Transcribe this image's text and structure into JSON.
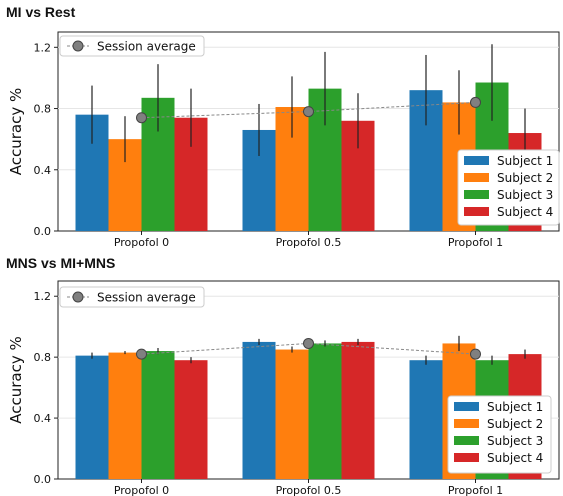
{
  "chart_data": [
    {
      "type": "bar",
      "title": "MI vs Rest",
      "ylabel": "Accuracy %",
      "xlabel": "",
      "ylim": [
        0,
        1.3
      ],
      "yticks": [
        "0.0",
        "0.4",
        "0.8",
        "1.2"
      ],
      "ytick_values": [
        0,
        0.4,
        0.8,
        1.2
      ],
      "categories": [
        "Propofol 0",
        "Propofol 0.5",
        "Propofol 1"
      ],
      "series": [
        {
          "name": "Subject 1",
          "color": "#1f77b4",
          "values": [
            0.76,
            0.66,
            0.92
          ],
          "errors": [
            0.19,
            0.17,
            0.23
          ]
        },
        {
          "name": "Subject 2",
          "color": "#ff7f0e",
          "values": [
            0.6,
            0.81,
            0.84
          ],
          "errors": [
            0.15,
            0.2,
            0.21
          ]
        },
        {
          "name": "Subject 3",
          "color": "#2ca02c",
          "values": [
            0.87,
            0.93,
            0.97
          ],
          "errors": [
            0.22,
            0.24,
            0.25
          ]
        },
        {
          "name": "Subject 4",
          "color": "#d62728",
          "values": [
            0.74,
            0.72,
            0.64
          ],
          "errors": [
            0.19,
            0.18,
            0.16
          ]
        }
      ],
      "session_average": {
        "name": "Session average",
        "values": [
          0.74,
          0.78,
          0.84
        ]
      },
      "legend_bars_position": "lower-right",
      "legend_avg_position": "upper-left",
      "grid": true
    },
    {
      "type": "bar",
      "title": "MNS vs MI+MNS",
      "ylabel": "Accuracy %",
      "xlabel": "",
      "ylim": [
        0,
        1.3
      ],
      "yticks": [
        "0.0",
        "0.4",
        "0.8",
        "1.2"
      ],
      "ytick_values": [
        0,
        0.4,
        0.8,
        1.2
      ],
      "categories": [
        "Propofol 0",
        "Propofol 0.5",
        "Propofol 1"
      ],
      "series": [
        {
          "name": "Subject 1",
          "color": "#1f77b4",
          "values": [
            0.81,
            0.9,
            0.78
          ],
          "errors": [
            0.02,
            0.02,
            0.03
          ]
        },
        {
          "name": "Subject 2",
          "color": "#ff7f0e",
          "values": [
            0.83,
            0.85,
            0.89
          ],
          "errors": [
            0.01,
            0.02,
            0.05
          ]
        },
        {
          "name": "Subject 3",
          "color": "#2ca02c",
          "values": [
            0.84,
            0.89,
            0.78
          ],
          "errors": [
            0.02,
            0.02,
            0.03
          ]
        },
        {
          "name": "Subject 4",
          "color": "#d62728",
          "values": [
            0.78,
            0.9,
            0.82
          ],
          "errors": [
            0.02,
            0.02,
            0.03
          ]
        }
      ],
      "session_average": {
        "name": "Session average",
        "values": [
          0.82,
          0.89,
          0.82
        ]
      },
      "legend_bars_position": "lower-right",
      "legend_avg_position": "upper-left",
      "grid": true
    }
  ]
}
